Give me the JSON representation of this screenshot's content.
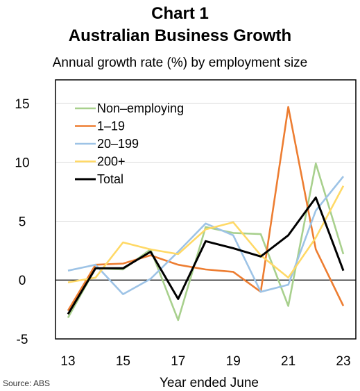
{
  "header": {
    "title_line1": "Chart 1",
    "title_line2": "Australian Business Growth",
    "subtitle": "Annual growth rate (%) by employment size"
  },
  "source": "Source: ABS",
  "chart_data": {
    "type": "line",
    "xlabel": "Year ended June",
    "ylabel": "",
    "x": [
      13,
      14,
      15,
      16,
      17,
      18,
      19,
      20,
      21,
      22,
      23
    ],
    "xticks": [
      "13",
      "15",
      "17",
      "19",
      "21",
      "23"
    ],
    "yticks": [
      "-5",
      "0",
      "5",
      "10",
      "15"
    ],
    "xlim": [
      13,
      23
    ],
    "ylim": [
      -5,
      17
    ],
    "grid": "horizontal",
    "legend_position": "top-left",
    "series": [
      {
        "name": "Non–employing",
        "color": "#a8d08d",
        "values": [
          -3.2,
          1.0,
          0.9,
          2.6,
          -3.4,
          4.5,
          4.0,
          3.9,
          -2.2,
          9.9,
          2.2
        ]
      },
      {
        "name": "1–19",
        "color": "#ed7d31",
        "values": [
          -2.6,
          1.3,
          1.4,
          2.1,
          1.3,
          0.9,
          0.7,
          -1.0,
          14.7,
          2.6,
          -2.2
        ]
      },
      {
        "name": "20–199",
        "color": "#9dc3e6",
        "values": [
          0.8,
          1.3,
          -1.2,
          0.1,
          2.4,
          4.8,
          3.8,
          -1.0,
          -0.4,
          5.9,
          8.8
        ]
      },
      {
        "name": "200+",
        "color": "#ffd966",
        "values": [
          -0.2,
          0.2,
          3.2,
          2.6,
          2.2,
          4.3,
          4.9,
          2.1,
          0.2,
          3.6,
          8.0
        ]
      },
      {
        "name": "Total",
        "color": "#000000",
        "values": [
          -2.9,
          1.0,
          1.0,
          2.4,
          -1.6,
          3.3,
          2.7,
          2.0,
          3.8,
          7.0,
          0.8
        ]
      }
    ]
  }
}
